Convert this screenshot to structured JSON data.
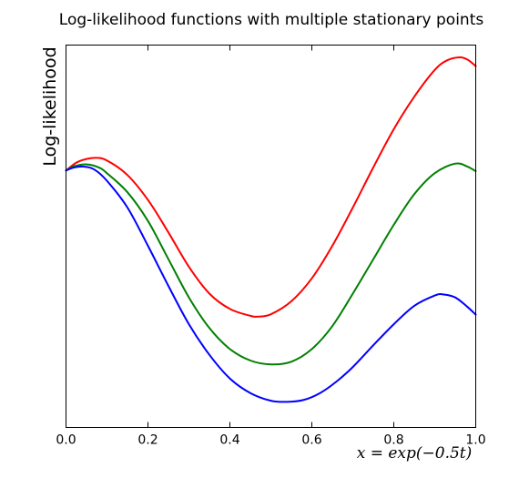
{
  "chart_data": {
    "type": "line",
    "title": "Log-likelihood functions with multiple stationary points",
    "xlabel": "x = exp(−0.5t)",
    "ylabel": "Log-likelihood",
    "xlim": [
      0.0,
      1.0
    ],
    "ylim": [
      0.0,
      1.0
    ],
    "x_ticks": [
      "0.0",
      "0.2",
      "0.4",
      "0.6",
      "0.8",
      "1.0"
    ],
    "y_ticks": [],
    "grid": false,
    "legend": "none",
    "series": [
      {
        "color": "#ff0000",
        "x": [
          0.0,
          0.03,
          0.07,
          0.1,
          0.15,
          0.2,
          0.25,
          0.3,
          0.35,
          0.4,
          0.45,
          0.47,
          0.5,
          0.55,
          0.6,
          0.65,
          0.7,
          0.75,
          0.8,
          0.85,
          0.9,
          0.93,
          0.96,
          0.98,
          1.0
        ],
        "values": [
          0.672,
          0.695,
          0.705,
          0.698,
          0.66,
          0.595,
          0.51,
          0.42,
          0.35,
          0.31,
          0.292,
          0.29,
          0.296,
          0.33,
          0.39,
          0.475,
          0.575,
          0.68,
          0.78,
          0.865,
          0.935,
          0.96,
          0.968,
          0.962,
          0.945
        ]
      },
      {
        "color": "#008000",
        "x": [
          0.0,
          0.02,
          0.05,
          0.08,
          0.1,
          0.15,
          0.2,
          0.25,
          0.3,
          0.35,
          0.4,
          0.45,
          0.5,
          0.55,
          0.6,
          0.65,
          0.7,
          0.75,
          0.8,
          0.85,
          0.9,
          0.95,
          0.98,
          1.0
        ],
        "values": [
          0.672,
          0.683,
          0.688,
          0.68,
          0.665,
          0.615,
          0.54,
          0.44,
          0.34,
          0.26,
          0.205,
          0.175,
          0.165,
          0.172,
          0.205,
          0.265,
          0.35,
          0.44,
          0.53,
          0.61,
          0.665,
          0.69,
          0.682,
          0.67
        ]
      },
      {
        "color": "#0000ff",
        "x": [
          0.0,
          0.02,
          0.045,
          0.07,
          0.1,
          0.15,
          0.2,
          0.25,
          0.3,
          0.35,
          0.4,
          0.45,
          0.5,
          0.54,
          0.58,
          0.62,
          0.66,
          0.7,
          0.75,
          0.8,
          0.85,
          0.9,
          0.92,
          0.95,
          0.98,
          1.0
        ],
        "values": [
          0.672,
          0.68,
          0.682,
          0.674,
          0.645,
          0.575,
          0.475,
          0.37,
          0.27,
          0.19,
          0.128,
          0.09,
          0.07,
          0.067,
          0.072,
          0.09,
          0.12,
          0.158,
          0.215,
          0.27,
          0.318,
          0.345,
          0.348,
          0.34,
          0.315,
          0.295
        ]
      }
    ]
  }
}
